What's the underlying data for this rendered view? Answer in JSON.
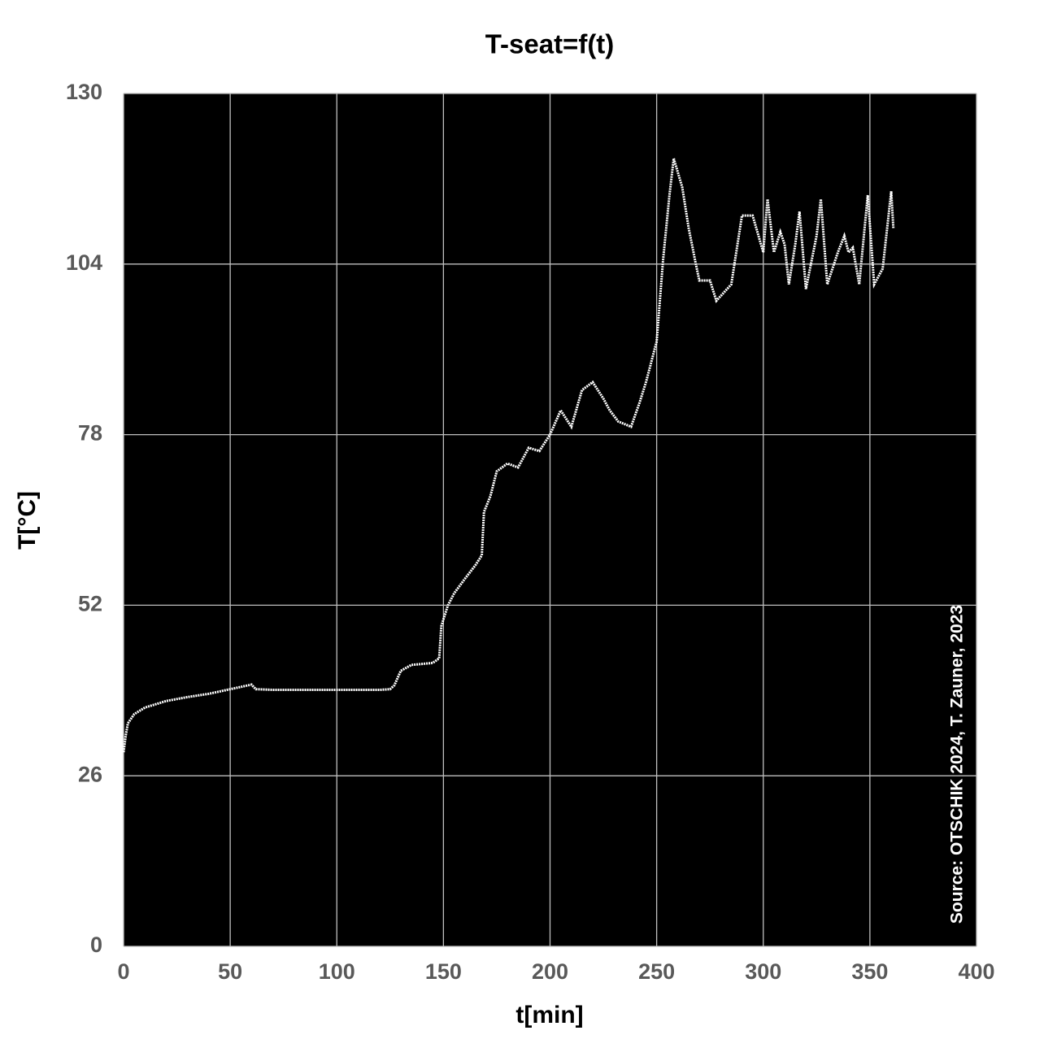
{
  "chart_data": {
    "type": "line",
    "title": "T-seat=f(t)",
    "x_label": "t[min]",
    "y_label": "T[°C]",
    "annotation": "Source: OTSCHIK 2024, T. Zauner, 2023",
    "xlim": [
      0,
      400
    ],
    "xticks": [
      0,
      50,
      100,
      150,
      200,
      250,
      300,
      350,
      400
    ],
    "ylim": [
      0,
      130
    ],
    "yticks": [
      0,
      26,
      52,
      78,
      104,
      130
    ],
    "grid": true,
    "background": "#000000",
    "series": [
      {
        "color": "#ffffff",
        "x": [
          0,
          1,
          2,
          5,
          10,
          20,
          30,
          40,
          50,
          60,
          62,
          70,
          80,
          90,
          100,
          110,
          120,
          125,
          127,
          130,
          135,
          145,
          148,
          149,
          152,
          155,
          160,
          165,
          168,
          169,
          172,
          175,
          180,
          185,
          190,
          195,
          200,
          205,
          210,
          215,
          220,
          225,
          228,
          232,
          238,
          242,
          245,
          250,
          253,
          256,
          258,
          262,
          265,
          268,
          270,
          275,
          278,
          285,
          290,
          295,
          300,
          302,
          305,
          308,
          310,
          312,
          315,
          317,
          320,
          325,
          327,
          330,
          335,
          338,
          340,
          342,
          345,
          349,
          352,
          356,
          360,
          361
        ],
        "values": [
          29.6,
          32.1,
          34,
          35.4,
          36.4,
          37.4,
          38,
          38.5,
          39.2,
          39.9,
          39.2,
          39.1,
          39.1,
          39.1,
          39.1,
          39.1,
          39.1,
          39.2,
          39.8,
          42,
          42.9,
          43.2,
          43.9,
          48.8,
          51.9,
          53.8,
          56,
          58.1,
          59.6,
          66.2,
          68.6,
          72.4,
          73.6,
          73,
          76,
          75.5,
          78,
          81.7,
          79.2,
          84.8,
          86,
          83.5,
          81.7,
          80,
          79.2,
          82.9,
          86,
          92.2,
          104.6,
          114.5,
          120.1,
          115.7,
          109.5,
          104.6,
          101.5,
          101.5,
          98.4,
          100.9,
          111.4,
          111.4,
          105.8,
          113.9,
          105.8,
          108.9,
          107,
          100.9,
          107,
          112,
          100.2,
          108.3,
          113.9,
          100.9,
          105.8,
          108.3,
          105.8,
          106.5,
          100.9,
          114.5,
          100.9,
          103.3,
          115.1,
          109.5
        ]
      }
    ]
  }
}
